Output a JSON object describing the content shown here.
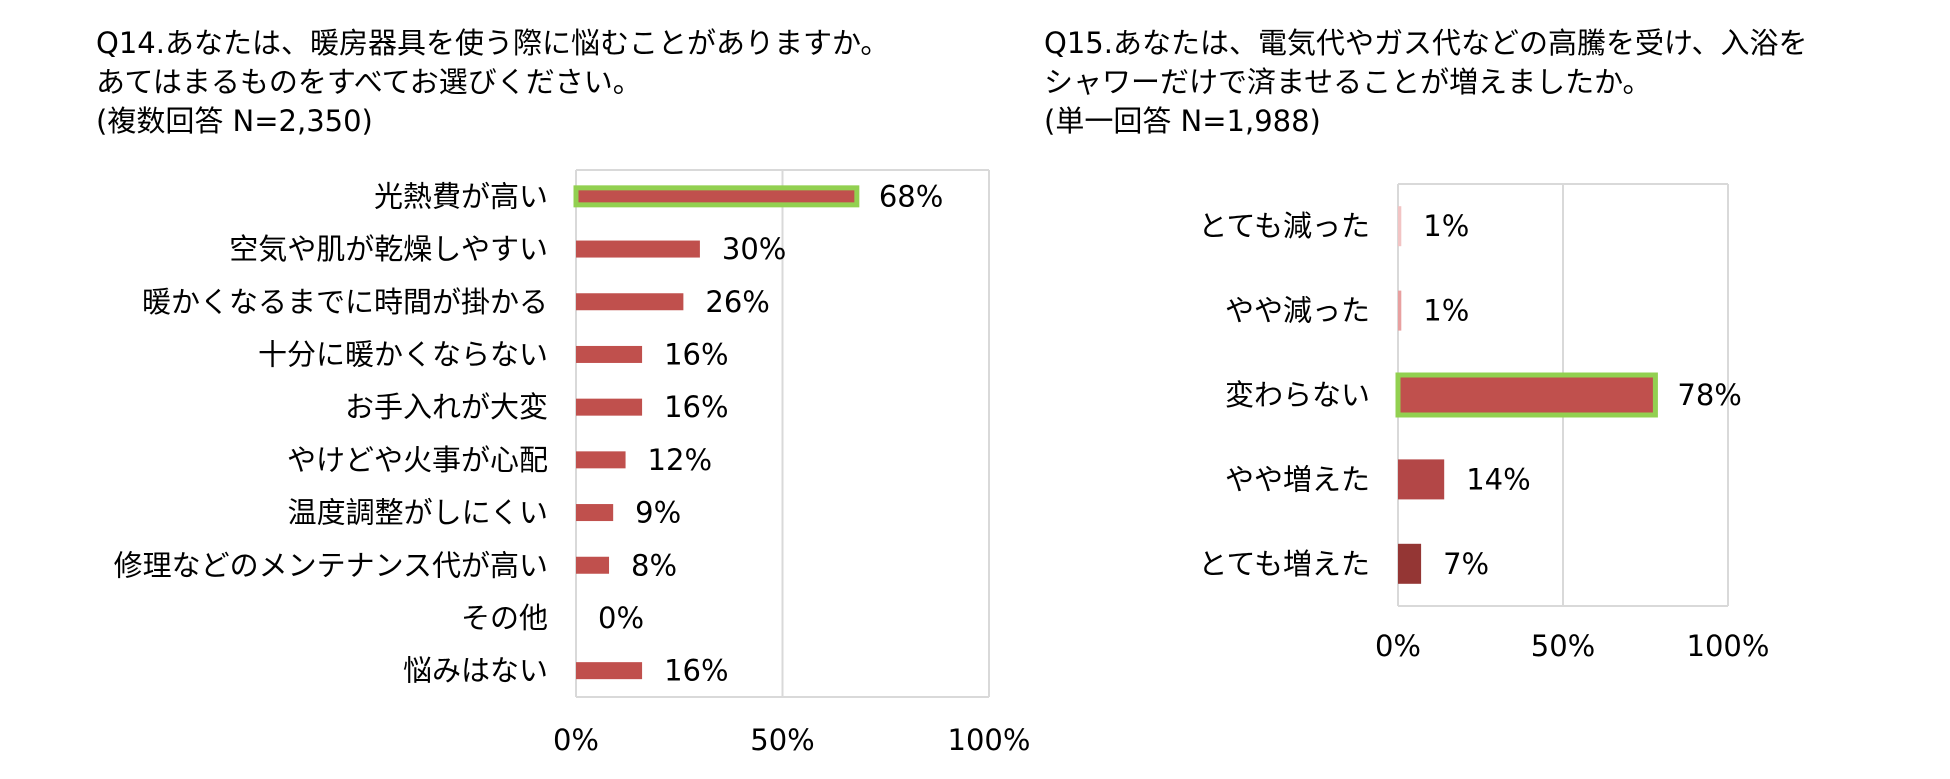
{
  "chart_data": [
    {
      "type": "bar",
      "orientation": "horizontal",
      "title_lines": [
        "Q14.あなたは、暖房器具を使う際に悩むことがありますか。",
        "あてはまるものをすべてお選びください。",
        "(複数回答 N=2,350)"
      ],
      "categories": [
        "光熱費が高い",
        "空気や肌が乾燥しやすい",
        "暖かくなるまでに時間が掛かる",
        "十分に暖かくならない",
        "お手入れが大変",
        "やけどや火事が心配",
        "温度調整がしにくい",
        "修理などのメンテナンス代が高い",
        "その他",
        "悩みはない"
      ],
      "values": [
        68,
        30,
        26,
        16,
        16,
        12,
        9,
        8,
        0,
        16
      ],
      "data_labels": [
        "68%",
        "30%",
        "26%",
        "16%",
        "16%",
        "12%",
        "9%",
        "8%",
        "0%",
        "16%"
      ],
      "highlight": [
        "光熱費が高い"
      ],
      "xlim": [
        0,
        100
      ],
      "xticks": [
        "0%",
        "50%",
        "100%"
      ],
      "grid": true,
      "bar_color": "#c0504d",
      "highlight_border_color": "#92d050"
    },
    {
      "type": "bar",
      "orientation": "horizontal",
      "title_lines": [
        "Q15.あなたは、電気代やガス代などの高騰を受け、入浴を",
        "シャワーだけで済ませることが増えましたか。",
        "(単一回答 N=1,988)"
      ],
      "categories": [
        "とても減った",
        "やや減った",
        "変わらない",
        "やや増えた",
        "とても増えた"
      ],
      "values": [
        1,
        1,
        78,
        14,
        7
      ],
      "data_labels": [
        "1%",
        "1%",
        "78%",
        "14%",
        "7%"
      ],
      "highlight": [
        "変わらない"
      ],
      "xlim": [
        0,
        100
      ],
      "xticks": [
        "0%",
        "50%",
        "100%"
      ],
      "grid": true,
      "bar_colors": [
        "#f2c4c4",
        "#e8a0a0",
        "#c0504d",
        "#b34747",
        "#943634"
      ],
      "highlight_border_color": "#92d050"
    }
  ]
}
